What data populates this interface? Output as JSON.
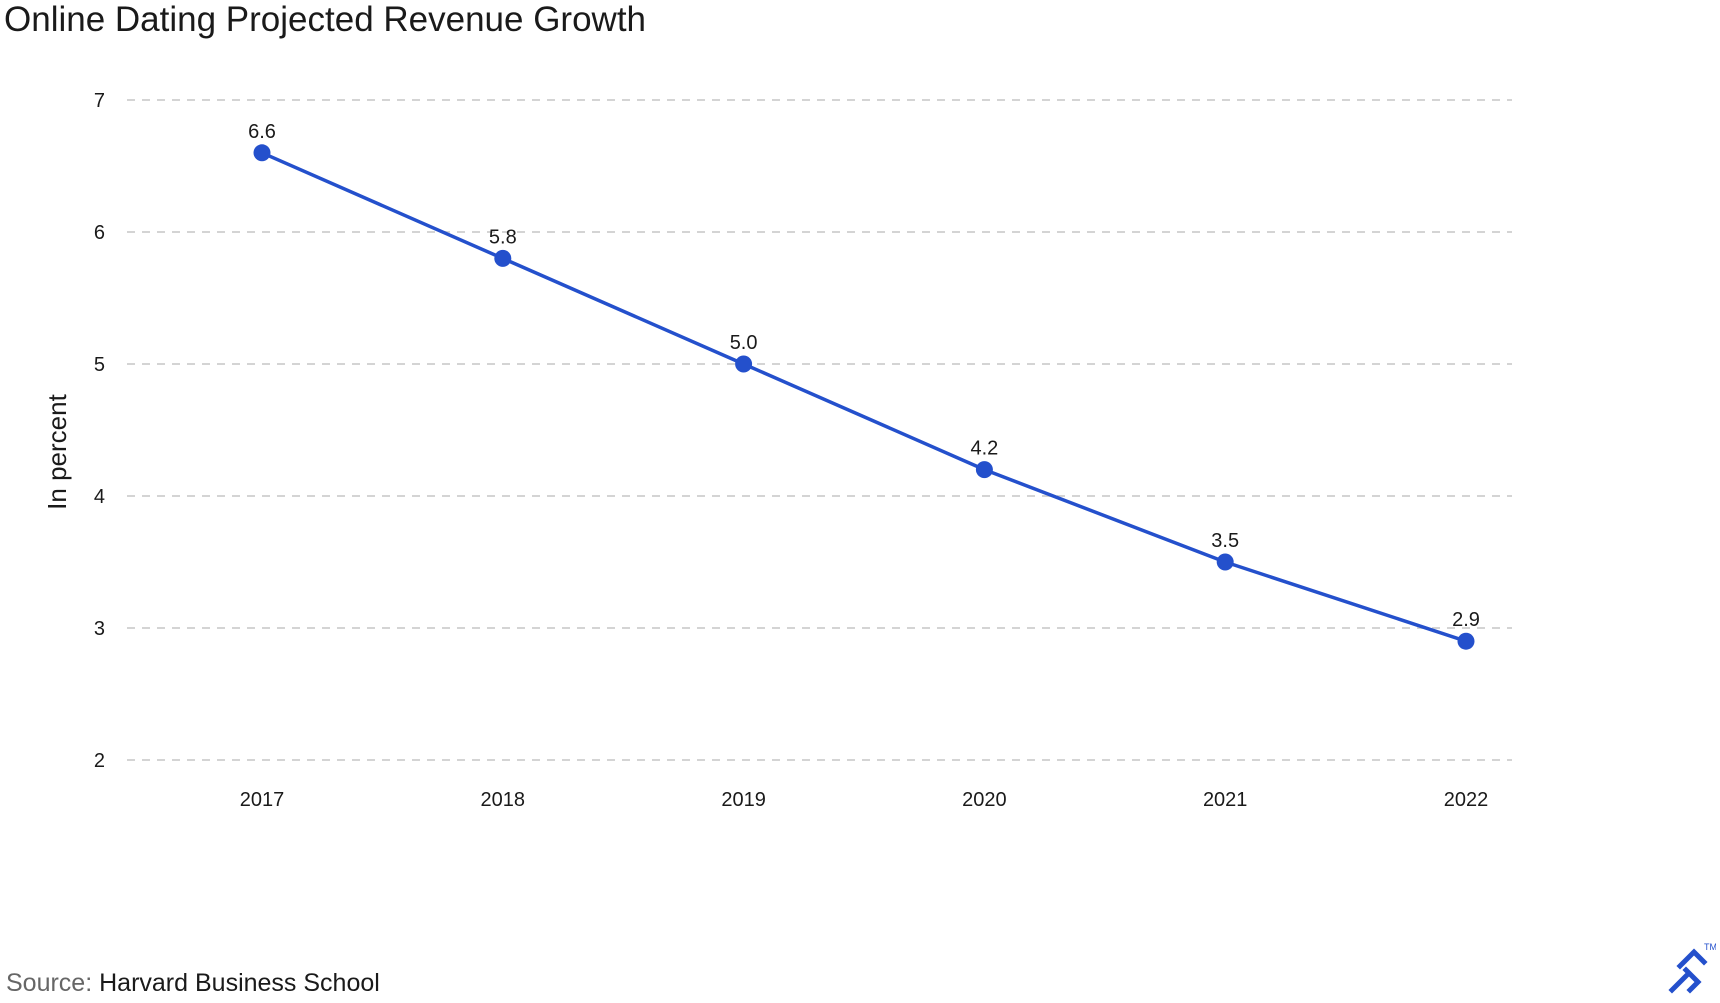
{
  "chart_data": {
    "type": "line",
    "title": "Online Dating Projected Revenue Growth",
    "ylabel": "In percent",
    "xlabel": "",
    "categories": [
      "2017",
      "2018",
      "2019",
      "2020",
      "2021",
      "2022"
    ],
    "values": [
      6.6,
      5.8,
      5.0,
      4.2,
      3.5,
      2.9
    ],
    "data_labels": [
      "6.6",
      "5.8",
      "5.0",
      "4.2",
      "3.5",
      "2.9"
    ],
    "y_ticks": [
      2,
      3,
      4,
      5,
      6,
      7
    ],
    "ylim": [
      2,
      7
    ],
    "grid": "horizontal dashed",
    "line_color": "#2450cc",
    "grid_color": "#d4d4d4"
  },
  "source": {
    "label": "Source:",
    "text": "Harvard Business School"
  },
  "brand": {
    "icon": "toptal-logo-icon",
    "trademark": "TM",
    "color": "#2450cc"
  }
}
